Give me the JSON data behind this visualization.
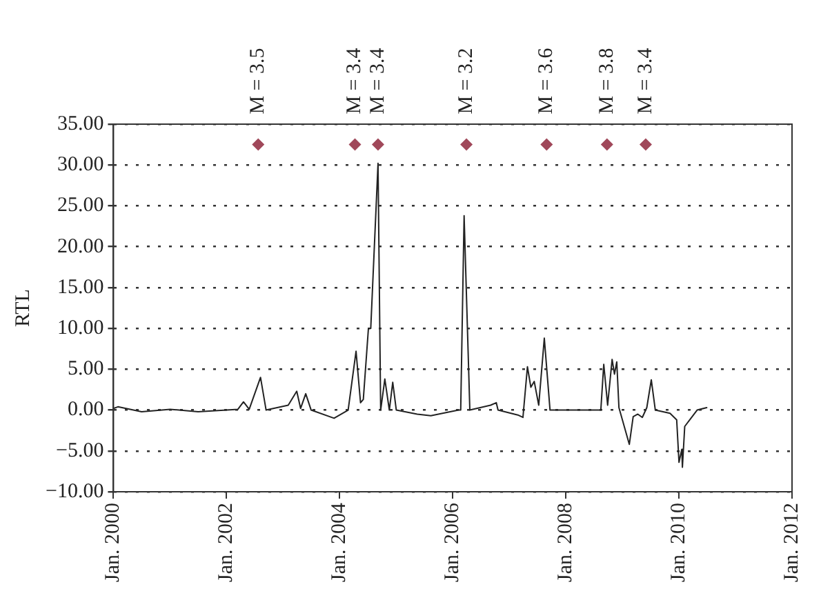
{
  "chart_data": {
    "type": "line",
    "ylabel": "RTL",
    "xlim": [
      "2000-01",
      "2012-01"
    ],
    "ylim": [
      -10,
      35
    ],
    "xticks": [
      {
        "value": "2000-01",
        "label": "Jan. 2000"
      },
      {
        "value": "2002-01",
        "label": "Jan. 2002"
      },
      {
        "value": "2004-01",
        "label": "Jan. 2004"
      },
      {
        "value": "2006-01",
        "label": "Jan. 2006"
      },
      {
        "value": "2008-01",
        "label": "Jan. 2008"
      },
      {
        "value": "2010-01",
        "label": "Jan. 2010"
      },
      {
        "value": "2012-01",
        "label": "Jan. 2012"
      }
    ],
    "yticks": [
      {
        "value": -10,
        "label": "−10.00"
      },
      {
        "value": -5,
        "label": "−5.00"
      },
      {
        "value": 0,
        "label": "0.00"
      },
      {
        "value": 5,
        "label": "5.00"
      },
      {
        "value": 10,
        "label": "10.00"
      },
      {
        "value": 15,
        "label": "15.00"
      },
      {
        "value": 20,
        "label": "20.00"
      },
      {
        "value": 25,
        "label": "25.00"
      },
      {
        "value": 30,
        "label": "30.00"
      },
      {
        "value": 35,
        "label": "35.00"
      }
    ],
    "grid": "y",
    "legend": false,
    "line_style": "solid",
    "series": [
      {
        "color": "#222222",
        "marker": "none",
        "x": [
          "2000-01-01",
          "2000-01-30",
          "2000-07-01",
          "2001-01-01",
          "2001-07-01",
          "2002-03-15",
          "2002-04-20",
          "2002-05-27",
          "2002-08-08",
          "2002-09-13",
          "2003-02-03",
          "2003-03-30",
          "2003-04-24",
          "2003-05-27",
          "2003-07-01",
          "2003-11-26",
          "2004-02-25",
          "2004-04-16",
          "2004-05-15",
          "2004-06-02",
          "2004-07-05",
          "2004-07-20",
          "2004-09-05",
          "2004-09-22",
          "2004-10-19",
          "2004-11-17",
          "2004-12-09",
          "2005-01-01",
          "2005-05-16",
          "2005-08-12",
          "2006-02-07",
          "2006-02-21",
          "2006-03-15",
          "2006-04-21",
          "2006-09-02",
          "2006-10-09",
          "2006-10-20",
          "2007-02-25",
          "2007-03-30",
          "2007-04-28",
          "2007-05-20",
          "2007-06-11",
          "2007-07-10",
          "2007-08-15",
          "2007-09-21",
          "2008-08-14",
          "2008-09-02",
          "2008-09-27",
          "2008-10-26",
          "2008-11-10",
          "2008-11-25",
          "2008-12-09",
          "2009-02-14",
          "2009-03-11",
          "2009-04-10",
          "2009-05-09",
          "2009-06-07",
          "2009-07-06",
          "2009-08-01",
          "2009-11-04",
          "2009-12-17",
          "2010-01-01",
          "2010-01-19",
          "2010-01-23",
          "2010-02-07",
          "2010-03-15",
          "2010-04-28",
          "2010-06-29"
        ],
        "values": [
          0.2,
          0.4,
          -0.2,
          0.1,
          -0.2,
          0.1,
          1.0,
          0.1,
          4.0,
          0.0,
          0.6,
          2.3,
          0.2,
          2.0,
          0.0,
          -1.0,
          0.0,
          7.2,
          0.9,
          1.3,
          10.0,
          10.0,
          30.2,
          0.0,
          3.8,
          0.0,
          3.4,
          0.0,
          -0.5,
          -0.7,
          0.0,
          0.0,
          23.8,
          0.0,
          0.6,
          0.9,
          0.0,
          -0.6,
          -0.9,
          5.3,
          2.8,
          3.5,
          0.6,
          8.8,
          0.0,
          0.0,
          5.6,
          0.6,
          6.2,
          4.4,
          5.9,
          0.3,
          -4.2,
          -0.8,
          -0.5,
          -0.9,
          0.3,
          3.7,
          0.0,
          -0.4,
          -1.2,
          -6.4,
          -4.8,
          -7.0,
          -2.0,
          -1.1,
          0.0,
          0.3
        ]
      },
      {
        "type": "scatter",
        "color": "#a0485a",
        "marker": "diamond",
        "x": [
          "2002-07-24",
          "2004-04-09",
          "2004-09-05",
          "2006-03-30",
          "2007-08-30",
          "2008-09-23",
          "2009-05-31"
        ],
        "values": [
          32.5,
          32.5,
          32.5,
          32.5,
          32.5,
          32.5,
          32.5
        ]
      }
    ],
    "annotations": [
      {
        "text": "M = 3.5",
        "x": "2002-07-24",
        "y": 32.5
      },
      {
        "text": "M = 3.4",
        "x": "2004-04-09",
        "y": 32.5
      },
      {
        "text": "M = 3.4",
        "x": "2004-09-05",
        "y": 32.5
      },
      {
        "text": "M = 3.2",
        "x": "2006-03-30",
        "y": 32.5
      },
      {
        "text": "M = 3.6",
        "x": "2007-08-30",
        "y": 32.5
      },
      {
        "text": "M = 3.8",
        "x": "2008-09-23",
        "y": 32.5
      },
      {
        "text": "M = 3.4",
        "x": "2009-05-31",
        "y": 32.5
      }
    ]
  }
}
